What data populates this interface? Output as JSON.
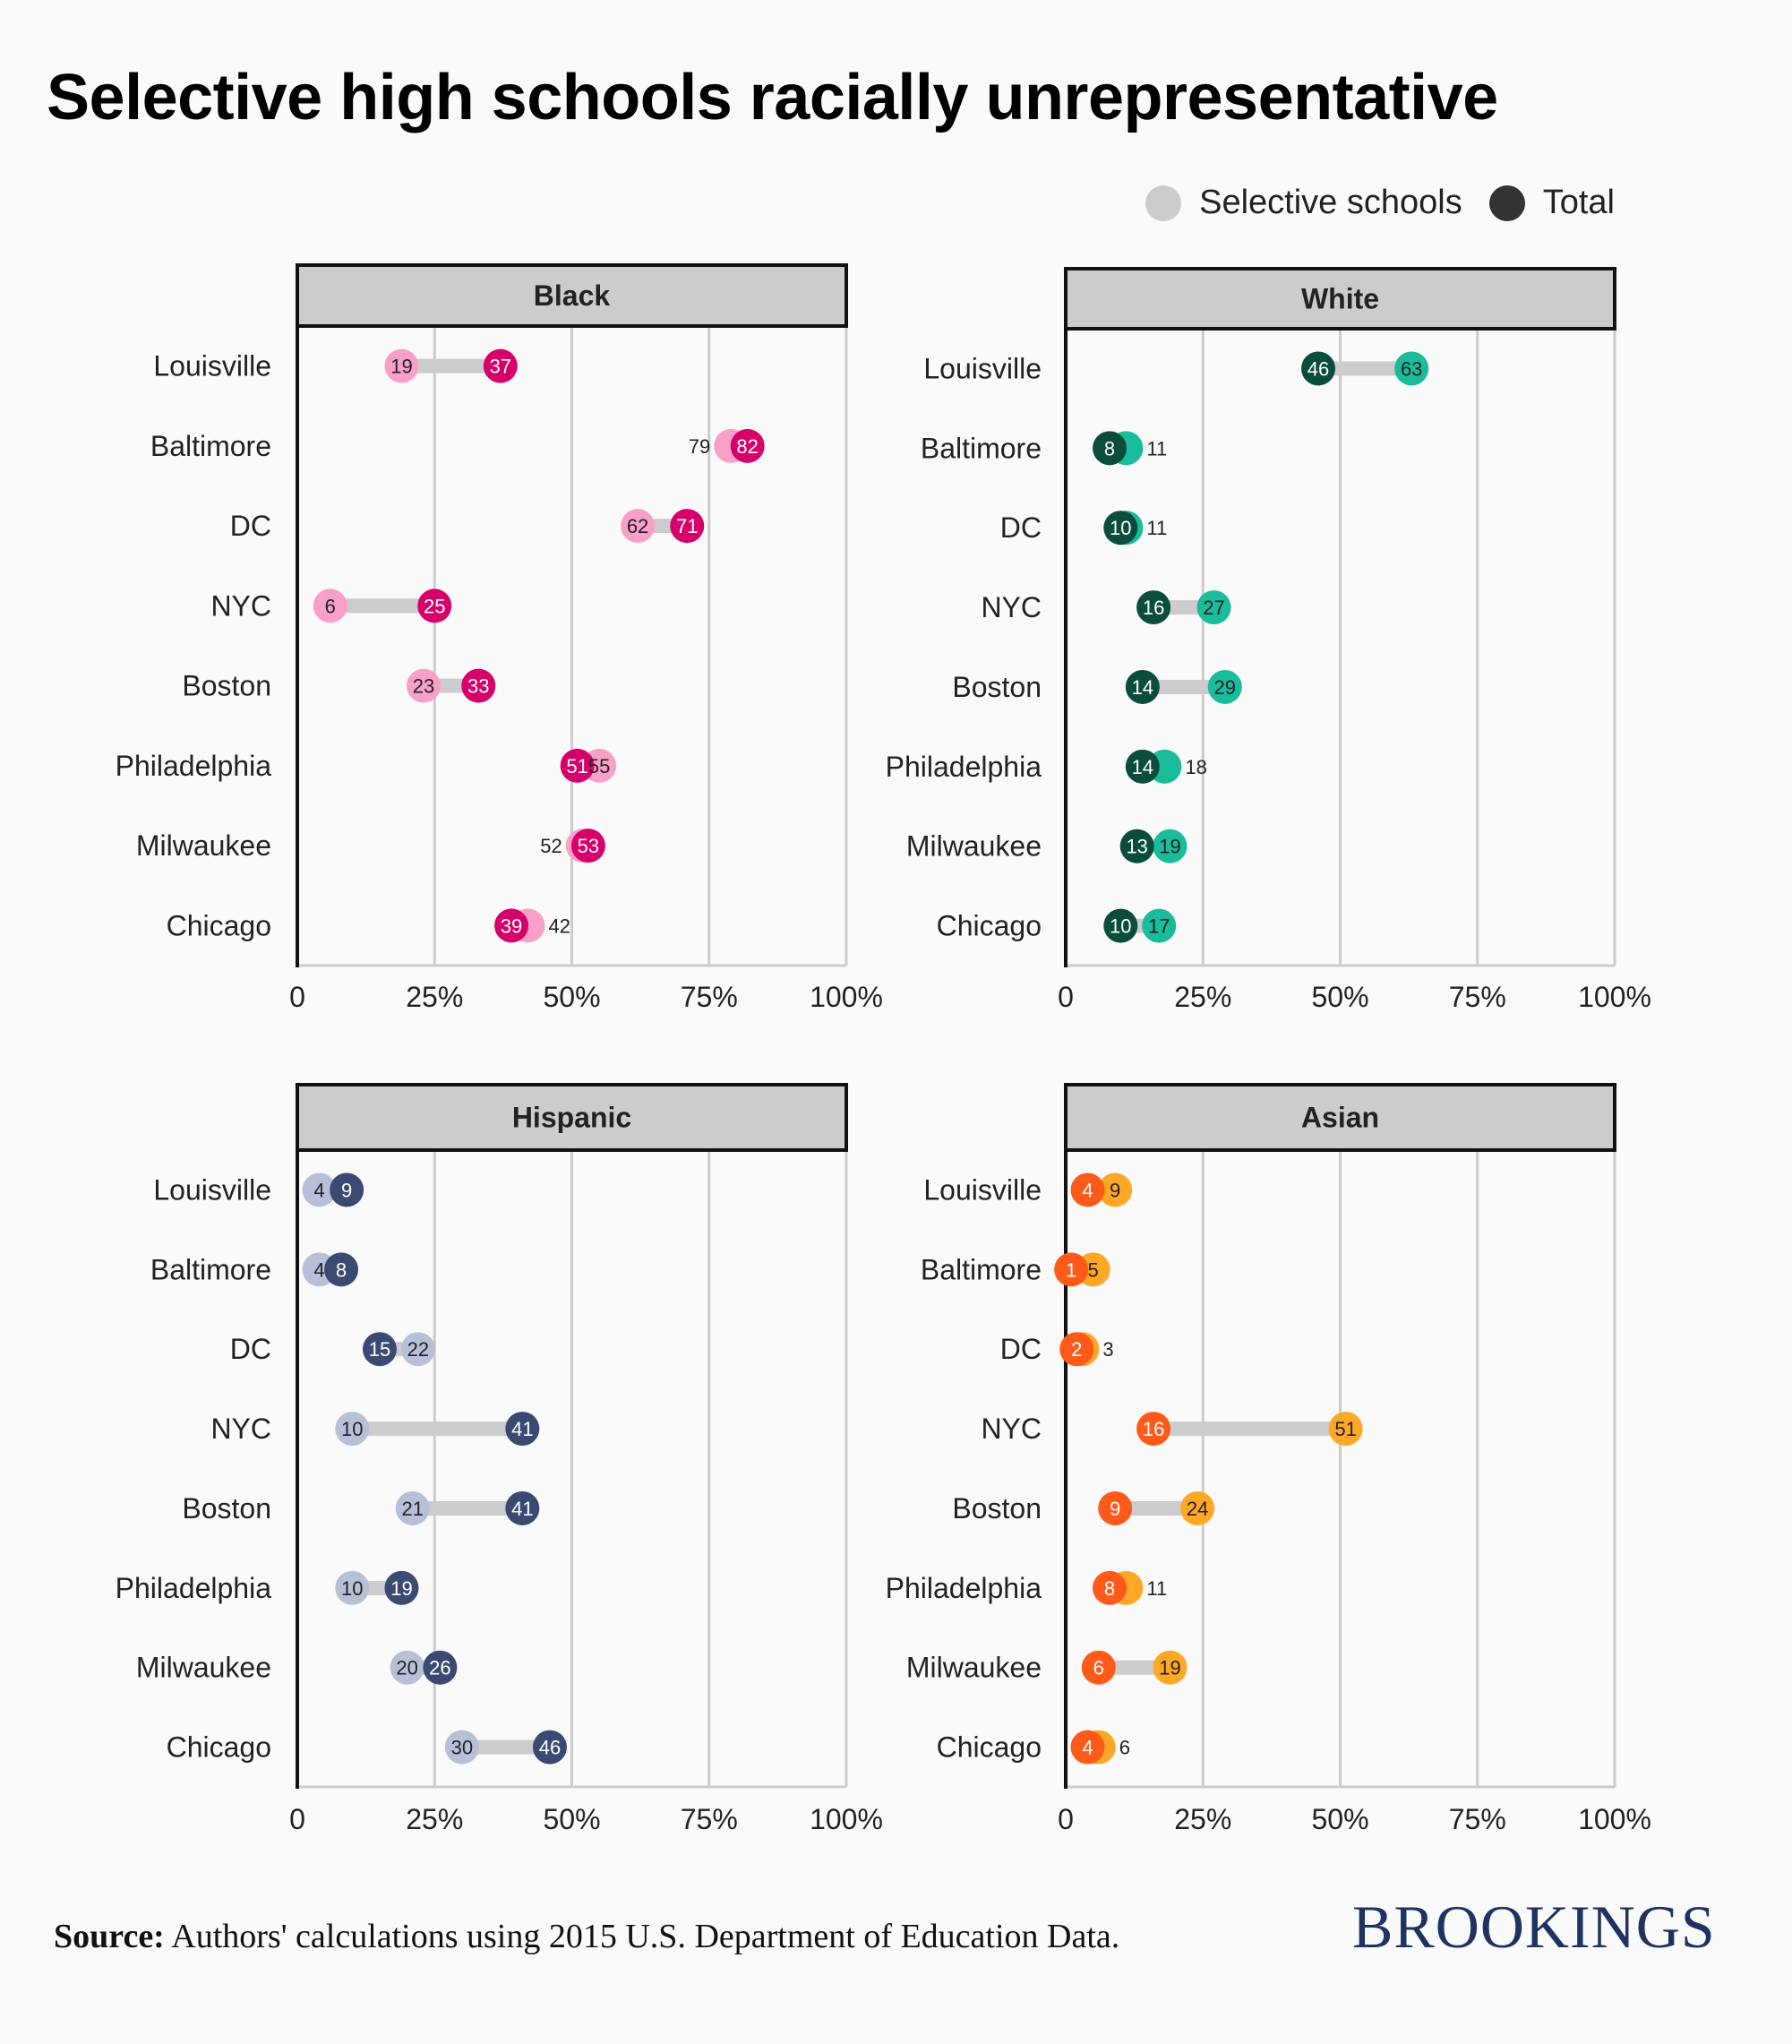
{
  "title": "Selective high schools racially unrepresentative",
  "legend": [
    {
      "label": "Selective schools",
      "color": "#cccccc"
    },
    {
      "label": "Total",
      "color": "#333333"
    }
  ],
  "source": {
    "label": "Source:",
    "text": "Authors' calculations using 2015 U.S. Department of Education Data."
  },
  "logo": "BROOKINGS",
  "chart_data": [
    {
      "type": "dumbbell",
      "title": "Black",
      "xlim": [
        0,
        100
      ],
      "xticks": [
        "0",
        "25%",
        "50%",
        "75%",
        "100%"
      ],
      "categories": [
        "Louisville",
        "Baltimore",
        "DC",
        "NYC",
        "Boston",
        "Philadelphia",
        "Milwaukee",
        "Chicago"
      ],
      "series": [
        {
          "name": "Selective schools",
          "color": "#f9a0c8",
          "values": [
            19,
            79,
            62,
            6,
            23,
            55,
            52,
            42
          ]
        },
        {
          "name": "Total",
          "color": "#d6006b",
          "values": [
            37,
            82,
            71,
            25,
            33,
            51,
            53,
            39
          ]
        }
      ]
    },
    {
      "type": "dumbbell",
      "title": "White",
      "xlim": [
        0,
        100
      ],
      "xticks": [
        "0",
        "25%",
        "50%",
        "75%",
        "100%"
      ],
      "categories": [
        "Louisville",
        "Baltimore",
        "DC",
        "NYC",
        "Boston",
        "Philadelphia",
        "Milwaukee",
        "Chicago"
      ],
      "series": [
        {
          "name": "Selective schools",
          "color": "#1abc9c",
          "values": [
            63,
            11,
            11,
            27,
            29,
            18,
            19,
            17
          ]
        },
        {
          "name": "Total",
          "color": "#0b4d3c",
          "values": [
            46,
            8,
            10,
            16,
            14,
            14,
            13,
            10
          ]
        }
      ]
    },
    {
      "type": "dumbbell",
      "title": "Hispanic",
      "xlim": [
        0,
        100
      ],
      "xticks": [
        "0",
        "25%",
        "50%",
        "75%",
        "100%"
      ],
      "categories": [
        "Louisville",
        "Baltimore",
        "DC",
        "NYC",
        "Boston",
        "Philadelphia",
        "Milwaukee",
        "Chicago"
      ],
      "series": [
        {
          "name": "Selective schools",
          "color": "#b8c0d8",
          "values": [
            4,
            4,
            22,
            10,
            21,
            10,
            20,
            30
          ]
        },
        {
          "name": "Total",
          "color": "#3b4a72",
          "values": [
            9,
            8,
            15,
            41,
            41,
            19,
            26,
            46
          ]
        }
      ]
    },
    {
      "type": "dumbbell",
      "title": "Asian",
      "xlim": [
        0,
        100
      ],
      "xticks": [
        "0",
        "25%",
        "50%",
        "75%",
        "100%"
      ],
      "categories": [
        "Louisville",
        "Baltimore",
        "DC",
        "NYC",
        "Boston",
        "Philadelphia",
        "Milwaukee",
        "Chicago"
      ],
      "series": [
        {
          "name": "Selective schools",
          "color": "#ffa726",
          "values": [
            9,
            5,
            3,
            51,
            24,
            11,
            19,
            6
          ]
        },
        {
          "name": "Total",
          "color": "#ff5a1a",
          "values": [
            4,
            1,
            2,
            16,
            9,
            8,
            6,
            4
          ]
        }
      ]
    }
  ]
}
